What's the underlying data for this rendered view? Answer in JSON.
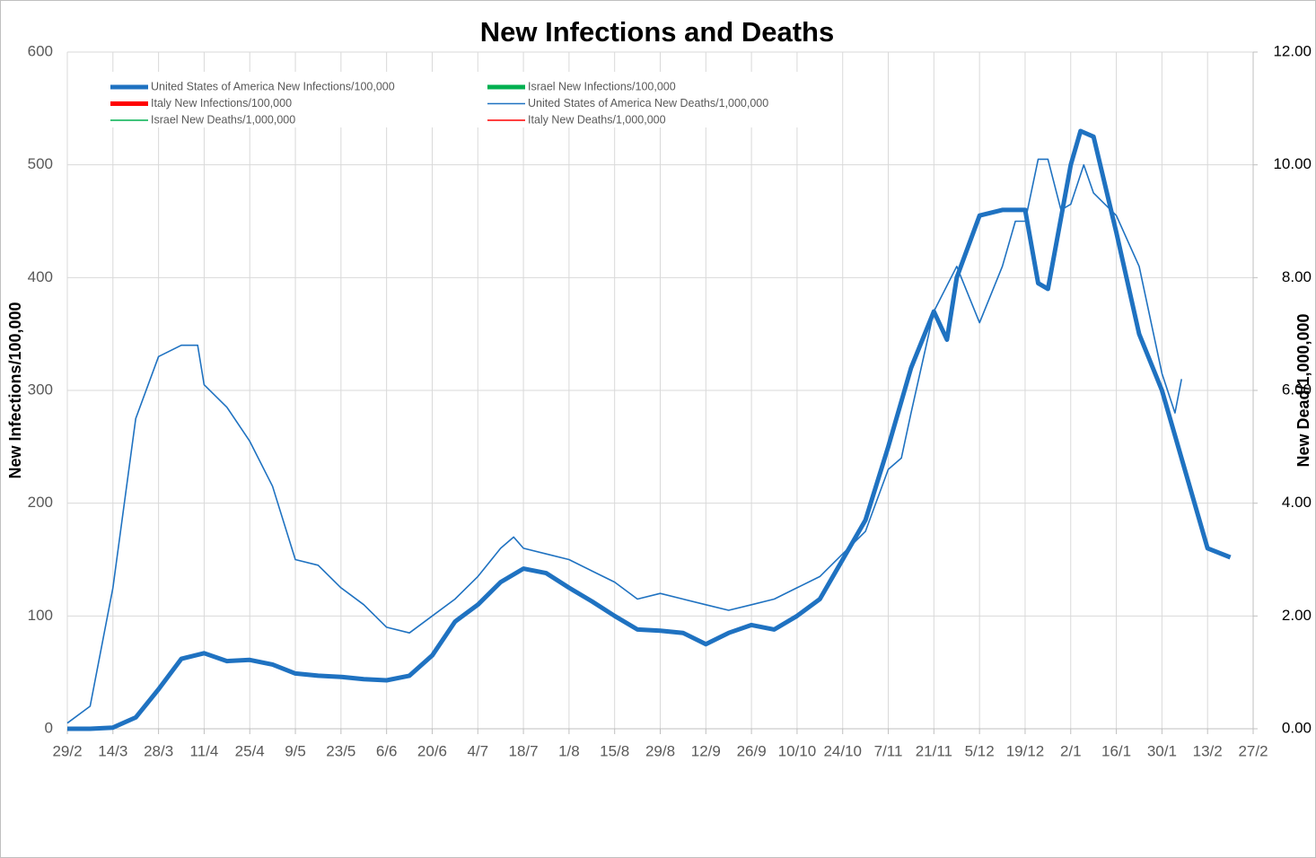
{
  "chart_data": {
    "type": "line",
    "title": "New Infections and Deaths",
    "y_label": "New Infections/100,000",
    "y2_label": "New Dead/1,000,000",
    "xlim": [
      0,
      364
    ],
    "xticks": [
      {
        "value": 0,
        "label": "29/2"
      },
      {
        "value": 14,
        "label": "14/3"
      },
      {
        "value": 28,
        "label": "28/3"
      },
      {
        "value": 42,
        "label": "11/4"
      },
      {
        "value": 56,
        "label": "25/4"
      },
      {
        "value": 70,
        "label": "9/5"
      },
      {
        "value": 84,
        "label": "23/5"
      },
      {
        "value": 98,
        "label": "6/6"
      },
      {
        "value": 112,
        "label": "20/6"
      },
      {
        "value": 126,
        "label": "4/7"
      },
      {
        "value": 140,
        "label": "18/7"
      },
      {
        "value": 154,
        "label": "1/8"
      },
      {
        "value": 168,
        "label": "15/8"
      },
      {
        "value": 182,
        "label": "29/8"
      },
      {
        "value": 196,
        "label": "12/9"
      },
      {
        "value": 210,
        "label": "26/9"
      },
      {
        "value": 224,
        "label": "10/10"
      },
      {
        "value": 238,
        "label": "24/10"
      },
      {
        "value": 252,
        "label": "7/11"
      },
      {
        "value": 266,
        "label": "21/11"
      },
      {
        "value": 280,
        "label": "5/12"
      },
      {
        "value": 294,
        "label": "19/12"
      },
      {
        "value": 308,
        "label": "2/1"
      },
      {
        "value": 322,
        "label": "16/1"
      },
      {
        "value": 336,
        "label": "30/1"
      },
      {
        "value": 350,
        "label": "13/2"
      },
      {
        "value": 364,
        "label": "27/2"
      }
    ],
    "ylim": [
      0,
      600
    ],
    "yticks": [
      0,
      100,
      200,
      300,
      400,
      500,
      600
    ],
    "y2lim": [
      0,
      12
    ],
    "y2ticks": [
      {
        "value": 0,
        "label": "0.00"
      },
      {
        "value": 2,
        "label": "2.00"
      },
      {
        "value": 4,
        "label": "4.00"
      },
      {
        "value": 6,
        "label": "6.00"
      },
      {
        "value": 8,
        "label": "8.00"
      },
      {
        "value": 10,
        "label": "10.00"
      },
      {
        "value": 12,
        "label": "12.00"
      }
    ],
    "grid": true,
    "legend": "top-left",
    "series": [
      {
        "name": "United States of America New Infections/100,000",
        "color": "#1f72c1",
        "axis": "y",
        "x": [
          0,
          7,
          14,
          21,
          28,
          35,
          42,
          49,
          56,
          63,
          70,
          77,
          84,
          91,
          98,
          105,
          112,
          119,
          126,
          133,
          140,
          147,
          154,
          161,
          168,
          175,
          182,
          189,
          196,
          203,
          210,
          217,
          224,
          231,
          238,
          245,
          252,
          259,
          266,
          270,
          273,
          280,
          287,
          294,
          298,
          301,
          308,
          311,
          315,
          322,
          329,
          336,
          343,
          350,
          357
        ],
        "values": [
          0,
          0,
          1,
          10,
          35,
          62,
          67,
          60,
          61,
          57,
          49,
          47,
          46,
          44,
          43,
          47,
          65,
          95,
          110,
          130,
          142,
          138,
          125,
          113,
          100,
          88,
          87,
          85,
          75,
          85,
          92,
          88,
          100,
          115,
          150,
          185,
          250,
          320,
          370,
          345,
          400,
          455,
          460,
          460,
          395,
          390,
          500,
          530,
          525,
          440,
          350,
          300,
          230,
          160,
          152
        ]
      },
      {
        "name": "Israel New Infections/100,000",
        "color": "#00b050",
        "axis": "y",
        "x": [],
        "values": []
      },
      {
        "name": "Italy New Infections/100,000",
        "color": "#ff0000",
        "axis": "y",
        "x": [],
        "values": []
      },
      {
        "name": "United States of America New Deaths/1,000,000",
        "color": "#1f72c1",
        "axis": "y2",
        "x": [
          0,
          7,
          14,
          21,
          28,
          35,
          40,
          42,
          49,
          56,
          63,
          70,
          77,
          84,
          91,
          98,
          105,
          112,
          119,
          126,
          133,
          137,
          140,
          147,
          154,
          161,
          168,
          175,
          182,
          189,
          196,
          203,
          210,
          217,
          224,
          231,
          238,
          245,
          252,
          256,
          259,
          266,
          273,
          280,
          287,
          291,
          294,
          298,
          301,
          305,
          308,
          312,
          315,
          322,
          329,
          336,
          340,
          342
        ],
        "values": [
          0.1,
          0.4,
          2.5,
          5.5,
          6.6,
          6.8,
          6.8,
          6.1,
          5.7,
          5.1,
          4.3,
          3.0,
          2.9,
          2.5,
          2.2,
          1.8,
          1.7,
          2.0,
          2.3,
          2.7,
          3.2,
          3.4,
          3.2,
          3.1,
          3.0,
          2.8,
          2.6,
          2.3,
          2.4,
          2.3,
          2.2,
          2.1,
          2.2,
          2.3,
          2.5,
          2.7,
          3.1,
          3.5,
          4.6,
          4.8,
          5.6,
          7.4,
          8.2,
          7.2,
          8.2,
          9.0,
          9.0,
          10.1,
          10.1,
          9.2,
          9.3,
          10.0,
          9.5,
          9.1,
          8.2,
          6.3,
          5.6,
          6.2
        ]
      },
      {
        "name": "Israel New Deaths/1,000,000",
        "color": "#00b050",
        "axis": "y2",
        "x": [],
        "values": []
      },
      {
        "name": "Italy New Deaths/1,000,000",
        "color": "#ff0000",
        "axis": "y2",
        "x": [],
        "values": []
      }
    ]
  }
}
